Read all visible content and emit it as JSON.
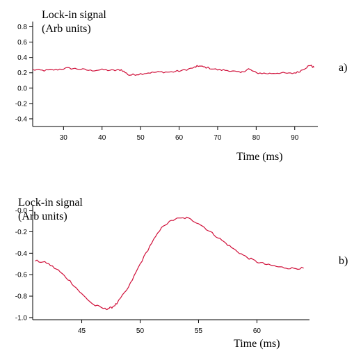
{
  "panels": [
    {
      "panel_label": "a)",
      "ylabel_line1": "Lock-in signal",
      "ylabel_line2": "(Arb units)",
      "xlabel": "Time (ms)"
    },
    {
      "panel_label": "b)",
      "ylabel_line1": "Lock-in signal",
      "ylabel_line2": "(Arb units)",
      "xlabel": "Time (ms)"
    }
  ],
  "chart_data": [
    {
      "type": "line",
      "title": "",
      "xlabel": "Time (ms)",
      "ylabel": "Lock-in signal (Arb units)",
      "xlim": [
        22,
        96
      ],
      "ylim": [
        -0.5,
        0.85
      ],
      "xticks": [
        30,
        40,
        50,
        60,
        70,
        80,
        90
      ],
      "xtick_labels": [
        "30",
        "40",
        "50",
        "60",
        "70",
        "80",
        "90"
      ],
      "yticks": [
        0.8,
        0.6,
        0.4,
        0.2,
        0.0,
        -0.2,
        -0.4
      ],
      "ytick_labels": [
        "0.8",
        "0.6",
        "0.4",
        "0.2",
        "0.0",
        "-0.2",
        "-0.4"
      ],
      "color": "#d0103a",
      "noise": 0.012,
      "series": [
        {
          "x": [
            22,
            25,
            28,
            31,
            34,
            37,
            40,
            43,
            45,
            47,
            49,
            52,
            55,
            58,
            61,
            64,
            65,
            67,
            70,
            73,
            76,
            78,
            80,
            83,
            86,
            89,
            91,
            93,
            94,
            95
          ],
          "values": [
            0.24,
            0.23,
            0.24,
            0.26,
            0.25,
            0.23,
            0.24,
            0.23,
            0.24,
            0.17,
            0.18,
            0.2,
            0.21,
            0.21,
            0.23,
            0.27,
            0.29,
            0.27,
            0.24,
            0.23,
            0.2,
            0.25,
            0.2,
            0.19,
            0.2,
            0.19,
            0.21,
            0.27,
            0.3,
            0.27
          ]
        }
      ]
    },
    {
      "type": "line",
      "title": "",
      "xlabel": "Time (ms)",
      "ylabel": "Lock-in signal (Arb units)",
      "xlim": [
        40.8,
        64.5
      ],
      "ylim": [
        -1.02,
        0.03
      ],
      "xticks": [
        45,
        50,
        55,
        60
      ],
      "xtick_labels": [
        "45",
        "50",
        "55",
        "60"
      ],
      "yticks": [
        0.0,
        -0.2,
        -0.4,
        -0.6,
        -0.8,
        -1.0
      ],
      "ytick_labels": [
        "-0.0",
        "-0.2",
        "-0.4",
        "-0.6",
        "-0.8",
        "-1.0"
      ],
      "color": "#d0103a",
      "noise": 0.01,
      "series": [
        {
          "x": [
            41.0,
            42.0,
            43.0,
            44.0,
            45.0,
            46.0,
            47.0,
            47.5,
            48.0,
            49.0,
            50.0,
            51.0,
            52.0,
            53.0,
            54.0,
            55.0,
            56.0,
            57.0,
            58.0,
            59.0,
            60.0,
            61.0,
            62.0,
            63.0,
            64.0
          ],
          "values": [
            -0.47,
            -0.49,
            -0.56,
            -0.66,
            -0.78,
            -0.88,
            -0.92,
            -0.91,
            -0.87,
            -0.72,
            -0.5,
            -0.3,
            -0.14,
            -0.08,
            -0.07,
            -0.12,
            -0.2,
            -0.28,
            -0.36,
            -0.43,
            -0.48,
            -0.51,
            -0.53,
            -0.54,
            -0.54
          ]
        }
      ]
    }
  ]
}
